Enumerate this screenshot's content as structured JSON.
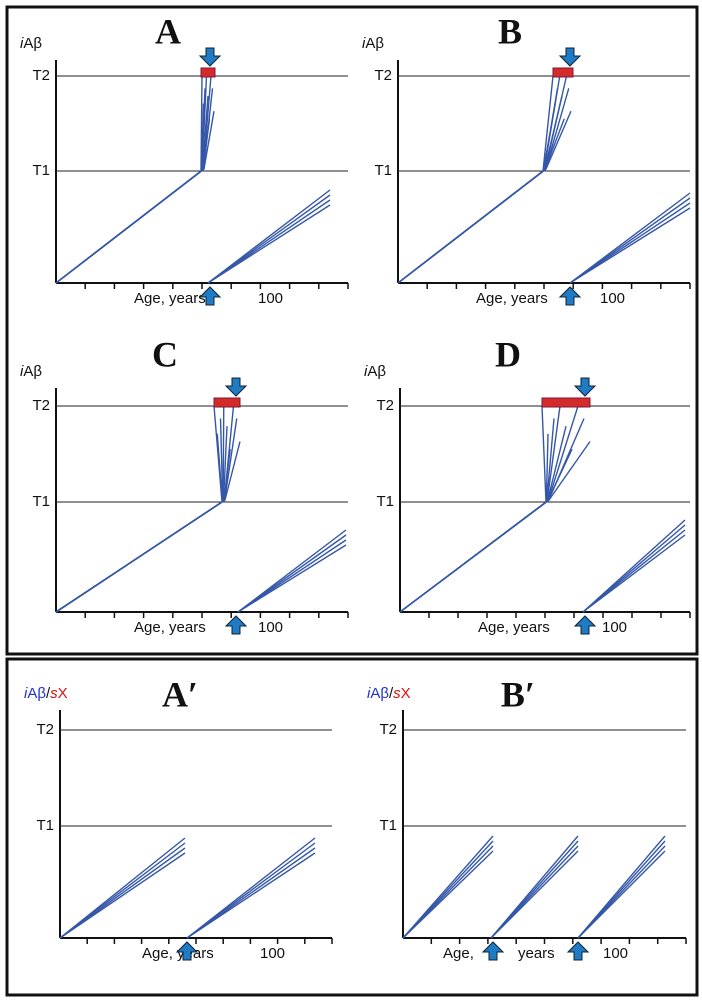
{
  "panels": [
    {
      "label": "A",
      "y_label": [
        "i",
        "Aβ"
      ],
      "thresholds": [
        "T2",
        "T1"
      ],
      "x_label": [
        "Age, years"
      ],
      "x_mark": "100"
    },
    {
      "label": "B",
      "y_label": [
        "i",
        "Aβ"
      ],
      "thresholds": [
        "T2",
        "T1"
      ],
      "x_label": [
        "Age, years"
      ],
      "x_mark": "100"
    },
    {
      "label": "C",
      "y_label": [
        "i",
        "Aβ"
      ],
      "thresholds": [
        "T2",
        "T1"
      ],
      "x_label": [
        "Age, years"
      ],
      "x_mark": "100"
    },
    {
      "label": "D",
      "y_label": [
        "i",
        "Aβ"
      ],
      "thresholds": [
        "T2",
        "T1"
      ],
      "x_label": [
        "Age, years"
      ],
      "x_mark": "100"
    },
    {
      "label": "A′",
      "y_label": [
        "i",
        "Aβ",
        "/",
        "s",
        "X"
      ],
      "thresholds": [
        "T2",
        "T1"
      ],
      "x_label": [
        "Age, years"
      ],
      "x_mark": "100"
    },
    {
      "label": "B′",
      "y_label": [
        "i",
        "Aβ",
        "/",
        "s",
        "X"
      ],
      "thresholds": [
        "T2",
        "T1"
      ],
      "x_label": [
        "Age,",
        "years"
      ],
      "x_mark": "100"
    }
  ]
}
